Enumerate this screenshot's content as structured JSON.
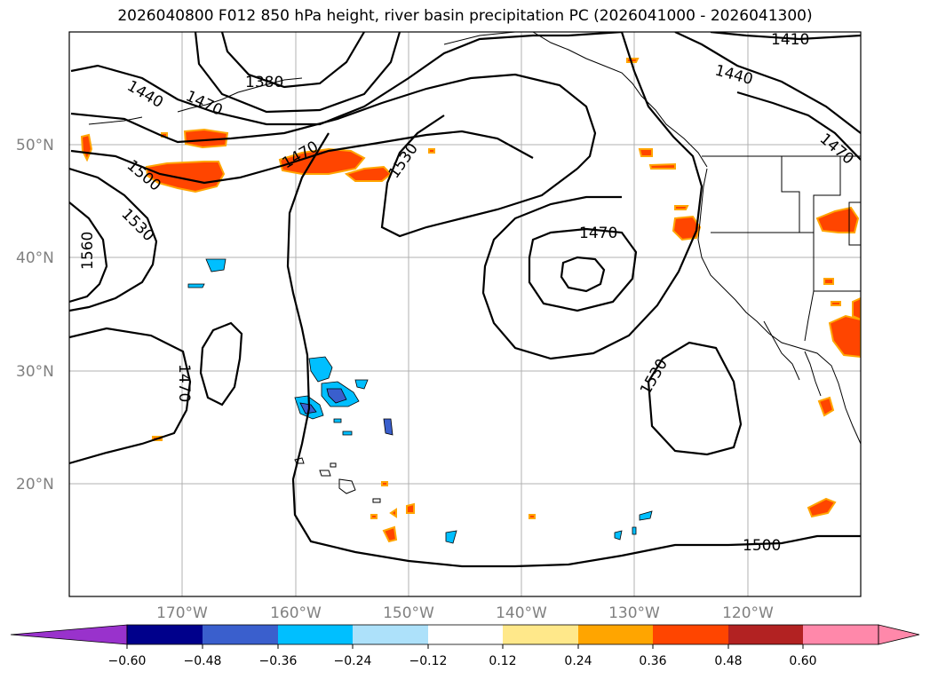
{
  "title": "2026040800 F012 850 hPa height, river basin precipitation PC (2026041000 - 2026041300)",
  "map": {
    "lat_labels": [
      "50°N",
      "40°N",
      "30°N",
      "20°N"
    ],
    "lon_labels": [
      "170°W",
      "160°W",
      "150°W",
      "140°W",
      "130°W",
      "120°W"
    ],
    "contour_labels": [
      "1410",
      "1440",
      "1380",
      "1470",
      "1440",
      "1470",
      "1470",
      "1500",
      "1530",
      "1530",
      "1560",
      "1470",
      "1470",
      "1530",
      "1500"
    ],
    "colors": {
      "low": "#9932CC",
      "high": "#FF88AA",
      "coast": "#000000",
      "grid": "#b0b0b0"
    }
  },
  "colorbar": {
    "tick_labels": [
      "−0.60",
      "−0.48",
      "−0.36",
      "−0.24",
      "−0.12",
      "0.12",
      "0.24",
      "0.36",
      "0.48",
      "0.60"
    ],
    "colors": [
      "#9932CC",
      "#00008B",
      "#3A5FCD",
      "#00BFFF",
      "#ADE1FA",
      "#FFFFFF",
      "#FFE88A",
      "#FFA500",
      "#FF4500",
      "#B22222",
      "#FF88AA"
    ]
  }
}
